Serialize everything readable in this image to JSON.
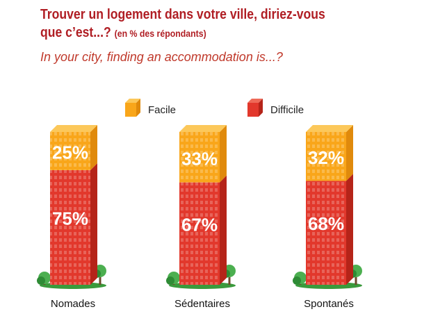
{
  "title": {
    "line1": "Trouver un logement dans votre ville, diriez-vous",
    "line2": "que c’est...?",
    "unit": "(en % des répondants)",
    "english": "In your city, finding an accommodation is...?"
  },
  "legend": {
    "facile": "Facile",
    "difficile": "Difficile"
  },
  "colors": {
    "facile": "#f9a61a",
    "facile_side": "#e08a0c",
    "difficile": "#e2382c",
    "difficile_side": "#b52419",
    "title": "#b01e24",
    "grass": "#3a9a3c",
    "tree": "#4caf50"
  },
  "chart_data": {
    "type": "bar",
    "stacked": true,
    "categories": [
      "Nomades",
      "Sédentaires",
      "Spontanés"
    ],
    "series": [
      {
        "name": "Facile",
        "values": [
          25,
          33,
          32
        ]
      },
      {
        "name": "Difficile",
        "values": [
          75,
          67,
          68
        ]
      }
    ],
    "value_labels": [
      [
        "25%",
        "33%",
        "32%"
      ],
      [
        "75%",
        "67%",
        "68%"
      ]
    ],
    "ylim": [
      0,
      100
    ],
    "legend_position": "top"
  }
}
